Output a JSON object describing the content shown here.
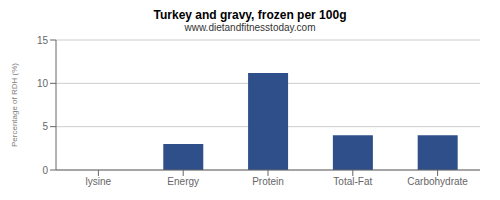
{
  "chart_data": {
    "type": "bar",
    "title": "Turkey and gravy, frozen per 100g",
    "subtitle": "www.dietandfitnesstoday.com",
    "categories": [
      "lysine",
      "Energy",
      "Protein",
      "Total-Fat",
      "Carbohydrate"
    ],
    "values": [
      0,
      3.0,
      11.2,
      4.0,
      4.0
    ],
    "color": "#2e4f8a",
    "ylabel": "Percentage of RDH (%)",
    "ylim": [
      0,
      15
    ],
    "yticks": [
      0,
      5,
      10,
      15
    ],
    "grid": true
  }
}
